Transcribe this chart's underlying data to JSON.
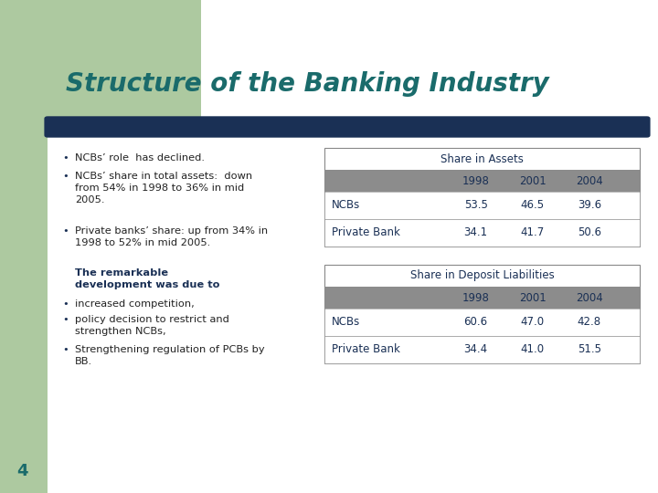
{
  "title": "Structure of the Banking Industry",
  "title_color": "#1a6b6b",
  "title_fontsize": 20,
  "bg_color": "#ffffff",
  "left_bar_color": "#adc9a0",
  "header_bar_color": "#1a3055",
  "bullet_points": [
    "NCBs’ role  has declined.",
    "NCBs’ share in total assets:  down\nfrom 54% in 1998 to 36% in mid\n2005.",
    "Private banks’ share: up from 34% in\n1998 to 52% in mid 2005.",
    "increased competition,",
    "policy decision to restrict and\nstrengthen NCBs,",
    "Strengthening regulation of PCBs by\nBB."
  ],
  "bold_text": "The remarkable\ndevelopment was due to",
  "table1_title": "Share in Assets",
  "table2_title": "Share in Deposit Liabilities",
  "table_header": [
    "",
    "1998",
    "2001",
    "2004"
  ],
  "table1_data": [
    [
      "NCBs",
      "53.5",
      "46.5",
      "39.6"
    ],
    [
      "Private Bank",
      "34.1",
      "41.7",
      "50.6"
    ]
  ],
  "table2_data": [
    [
      "NCBs",
      "60.6",
      "47.0",
      "42.8"
    ],
    [
      "Private Bank",
      "34.4",
      "41.0",
      "51.5"
    ]
  ],
  "table_header_bg": "#8c8c8c",
  "table_text_color": "#1a3055",
  "table_border_color": "#888888",
  "page_number": "4",
  "page_num_color": "#1a6b6b",
  "bullet_color": "#1a3055",
  "text_color": "#222222"
}
